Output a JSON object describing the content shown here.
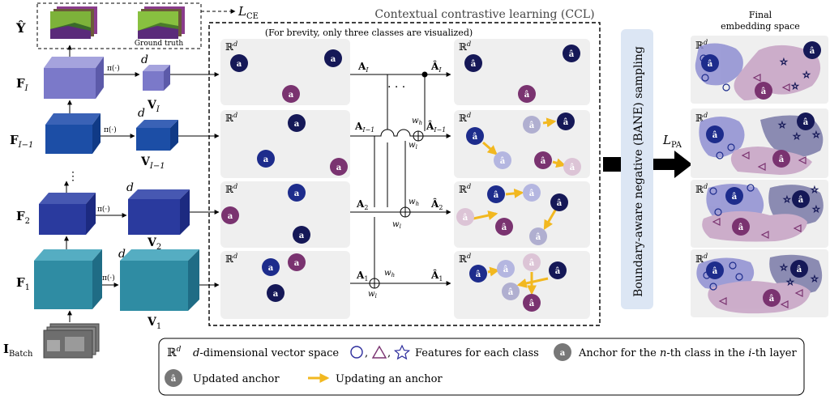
{
  "header": {
    "y_hat": "Ŷ",
    "ground_truth": "Ground truth",
    "loss_ce": "L",
    "loss_ce_sub": "CE",
    "ccl_title": "Contextual contrastive learning (CCL)",
    "brevity_note": "(For brevity, only three classes are visualized)"
  },
  "layers": [
    {
      "feat": "F",
      "feat_sub": "I",
      "vec": "V",
      "vec_sub": "I",
      "anchor": "A",
      "anchor_sub": "I",
      "out": "Â",
      "out_sub": "I"
    },
    {
      "feat": "F",
      "feat_sub": "I−1",
      "vec": "V",
      "vec_sub": "I−1",
      "anchor": "A",
      "anchor_sub": "I−1",
      "out": "Â",
      "out_sub": "I−1"
    },
    {
      "feat": "F",
      "feat_sub": "2",
      "vec": "V",
      "vec_sub": "2",
      "anchor": "A",
      "anchor_sub": "2",
      "out": "Â",
      "out_sub": "2"
    },
    {
      "feat": "F",
      "feat_sub": "1",
      "vec": "V",
      "vec_sub": "1",
      "anchor": "A",
      "anchor_sub": "1",
      "out": "Â",
      "out_sub": "1"
    }
  ],
  "proj": {
    "pi": "π(·)",
    "d": "d"
  },
  "weights": {
    "wh": "w",
    "wh_sub": "h",
    "wl": "w",
    "wl_sub": "l"
  },
  "ibatch": {
    "label": "I",
    "sub": "Batch"
  },
  "space": {
    "label": "ℝ",
    "sup": "d"
  },
  "bane_label": "Boundary-aware negative (BANE) sampling",
  "loss_pa": {
    "label": "L",
    "sub": "PA"
  },
  "final_title": [
    "Final",
    "embedding space"
  ],
  "legend": {
    "space_symbol": "ℝ",
    "space_sup": "d",
    "space_text_italic": "d",
    "space_text": "-dimensional vector space",
    "features_text": "Features for each class",
    "anchor_text_a": "Anchor for the ",
    "anchor_text_n": "n",
    "anchor_text_b": "-th class in the ",
    "anchor_text_i": "i",
    "anchor_text_c": "-th layer",
    "updated_text": "Updated anchor",
    "updating_text": "Updating an anchor"
  },
  "colors": {
    "class1": "#151857",
    "class2": "#7a3370",
    "class3": "#1d2c8c",
    "update_arrow": "#f2b820",
    "bane_fill": "#dce6f4",
    "panel_fill": "#f0f0f0",
    "feat_top": "#7b79c9",
    "feat_2": "#2a3a9e",
    "feat_1": "#2f8ca3"
  }
}
